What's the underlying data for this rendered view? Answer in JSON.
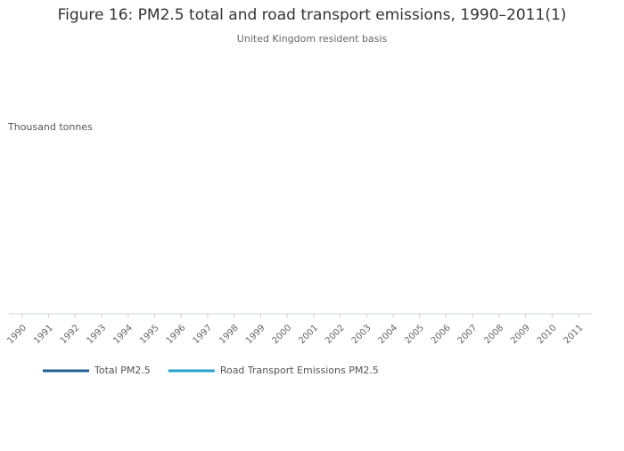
{
  "chart_data": {
    "type": "line",
    "title": "Figure 16: PM2.5 total and road transport emissions, 1990–2011(1)",
    "subtitle": "United Kingdom resident basis",
    "y_label": "Thousand tonnes",
    "categories": [
      "1990",
      "1991",
      "1992",
      "1993",
      "1994",
      "1995",
      "1996",
      "1997",
      "1998",
      "1999",
      "2000",
      "2001",
      "2002",
      "2003",
      "2004",
      "2005",
      "2006",
      "2007",
      "2008",
      "2009",
      "2010",
      "2011"
    ],
    "series": [
      {
        "name": "Total PM2.5",
        "color": "#206095",
        "values": [
          null,
          null,
          null,
          null,
          null,
          null,
          null,
          null,
          null,
          null,
          null,
          null,
          null,
          null,
          null,
          null,
          null,
          null,
          null,
          null,
          null,
          null
        ]
      },
      {
        "name": "Road Transport Emissions PM2.5",
        "color": "#27a0cc",
        "values": [
          null,
          null,
          null,
          null,
          null,
          null,
          null,
          null,
          null,
          null,
          null,
          null,
          null,
          null,
          null,
          null,
          null,
          null,
          null,
          null,
          null,
          null
        ]
      }
    ],
    "legend": "bottom-left"
  }
}
